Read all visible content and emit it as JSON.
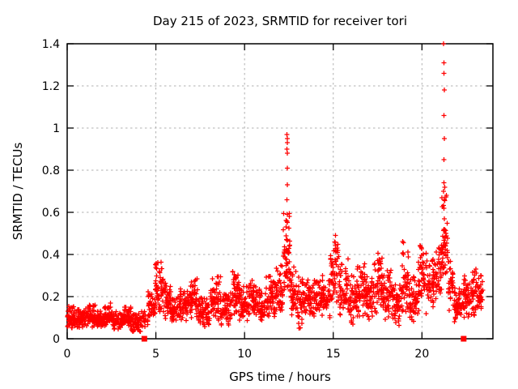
{
  "window": {
    "background": "#ffffff"
  },
  "chart_data": {
    "type": "scatter",
    "title": "Day 215 of 2023, SRMTID for receiver tori",
    "xlabel": "GPS time / hours",
    "ylabel": "SRMTID / TECUs",
    "xlim": [
      0,
      24
    ],
    "ylim": [
      0,
      1.4
    ],
    "xticks": [
      0,
      5,
      10,
      15,
      20
    ],
    "yticks": [
      0,
      0.2,
      0.4,
      0.6,
      0.8,
      1.0,
      1.2,
      1.4
    ],
    "xtick_labels": [
      "0",
      "5",
      "10",
      "15",
      "20"
    ],
    "ytick_labels": [
      "0",
      "0.2",
      "0.4",
      "0.6",
      "0.8",
      "1",
      "1.2",
      "1.4"
    ],
    "grid": true,
    "grid_style": "dashed",
    "legend": "none",
    "marker": "plus",
    "marker_color": "#ff0000",
    "grid_color": "#b0b0b0",
    "border_color": "#000000",
    "background": "#ffffff",
    "seed": 42,
    "density_bins": [
      [
        0.0,
        0.5,
        0.04,
        0.16,
        55
      ],
      [
        0.5,
        1.0,
        0.05,
        0.14,
        55
      ],
      [
        1.0,
        1.6,
        0.05,
        0.17,
        65
      ],
      [
        1.6,
        2.1,
        0.04,
        0.13,
        55
      ],
      [
        2.1,
        2.5,
        0.05,
        0.17,
        45
      ],
      [
        2.5,
        3.1,
        0.04,
        0.13,
        60
      ],
      [
        3.1,
        3.6,
        0.05,
        0.15,
        55
      ],
      [
        3.6,
        4.25,
        0.03,
        0.13,
        65
      ],
      [
        4.25,
        4.55,
        0.05,
        0.13,
        15
      ],
      [
        4.55,
        4.95,
        0.08,
        0.23,
        40
      ],
      [
        4.95,
        5.45,
        0.1,
        0.38,
        55
      ],
      [
        5.45,
        5.85,
        0.09,
        0.27,
        40
      ],
      [
        5.85,
        6.35,
        0.07,
        0.2,
        50
      ],
      [
        6.35,
        6.85,
        0.08,
        0.24,
        50
      ],
      [
        6.85,
        7.35,
        0.08,
        0.29,
        50
      ],
      [
        7.35,
        8.05,
        0.05,
        0.2,
        70
      ],
      [
        8.05,
        8.65,
        0.08,
        0.3,
        60
      ],
      [
        8.65,
        9.2,
        0.06,
        0.22,
        55
      ],
      [
        9.2,
        9.7,
        0.09,
        0.33,
        50
      ],
      [
        9.7,
        10.25,
        0.07,
        0.25,
        55
      ],
      [
        10.25,
        10.65,
        0.09,
        0.28,
        40
      ],
      [
        10.65,
        11.2,
        0.06,
        0.24,
        55
      ],
      [
        11.2,
        11.75,
        0.09,
        0.3,
        55
      ],
      [
        11.75,
        12.15,
        0.1,
        0.35,
        40
      ],
      [
        12.15,
        12.55,
        0.15,
        0.62,
        50
      ],
      [
        12.55,
        12.95,
        0.1,
        0.35,
        40
      ],
      [
        12.95,
        13.45,
        0.04,
        0.3,
        50
      ],
      [
        13.45,
        13.95,
        0.09,
        0.28,
        50
      ],
      [
        13.95,
        14.45,
        0.1,
        0.3,
        50
      ],
      [
        14.45,
        14.85,
        0.09,
        0.28,
        40
      ],
      [
        14.85,
        15.35,
        0.13,
        0.5,
        55
      ],
      [
        15.35,
        15.85,
        0.09,
        0.38,
        50
      ],
      [
        15.85,
        16.35,
        0.04,
        0.3,
        50
      ],
      [
        16.35,
        16.85,
        0.09,
        0.36,
        50
      ],
      [
        16.85,
        17.3,
        0.08,
        0.3,
        45
      ],
      [
        17.3,
        17.8,
        0.1,
        0.43,
        50
      ],
      [
        17.8,
        18.3,
        0.07,
        0.35,
        50
      ],
      [
        18.3,
        18.8,
        0.05,
        0.26,
        50
      ],
      [
        18.8,
        19.3,
        0.08,
        0.47,
        50
      ],
      [
        19.3,
        19.8,
        0.06,
        0.3,
        50
      ],
      [
        19.8,
        20.3,
        0.1,
        0.48,
        50
      ],
      [
        20.3,
        20.8,
        0.13,
        0.4,
        50
      ],
      [
        20.8,
        21.1,
        0.18,
        0.45,
        30
      ],
      [
        21.1,
        21.45,
        0.22,
        0.72,
        45
      ],
      [
        21.45,
        21.75,
        0.12,
        0.38,
        30
      ],
      [
        21.75,
        22.35,
        0.07,
        0.24,
        55
      ],
      [
        22.35,
        22.75,
        0.09,
        0.3,
        40
      ],
      [
        22.75,
        23.15,
        0.1,
        0.35,
        40
      ],
      [
        23.15,
        23.45,
        0.13,
        0.3,
        30
      ]
    ],
    "spike_points": [
      [
        12.38,
        0.97
      ],
      [
        12.4,
        0.95
      ],
      [
        12.42,
        0.93
      ],
      [
        12.39,
        0.9
      ],
      [
        12.41,
        0.88
      ],
      [
        12.4,
        0.81
      ],
      [
        12.42,
        0.73
      ],
      [
        12.39,
        0.66
      ],
      [
        12.41,
        0.59
      ],
      [
        12.38,
        0.47
      ],
      [
        12.43,
        0.41
      ],
      [
        12.36,
        0.36
      ],
      [
        21.22,
        1.4
      ],
      [
        21.25,
        1.31
      ],
      [
        21.23,
        1.26
      ],
      [
        21.26,
        1.18
      ],
      [
        21.24,
        1.06
      ],
      [
        21.27,
        0.95
      ],
      [
        21.23,
        0.85
      ],
      [
        21.25,
        0.74
      ],
      [
        21.28,
        0.72
      ],
      [
        21.22,
        0.7
      ],
      [
        21.26,
        0.66
      ],
      [
        21.24,
        0.62
      ],
      [
        21.27,
        0.57
      ],
      [
        21.25,
        0.52
      ],
      [
        21.3,
        0.48
      ],
      [
        21.2,
        0.44
      ]
    ],
    "axis_squares_hours": [
      4.35,
      22.35
    ]
  }
}
